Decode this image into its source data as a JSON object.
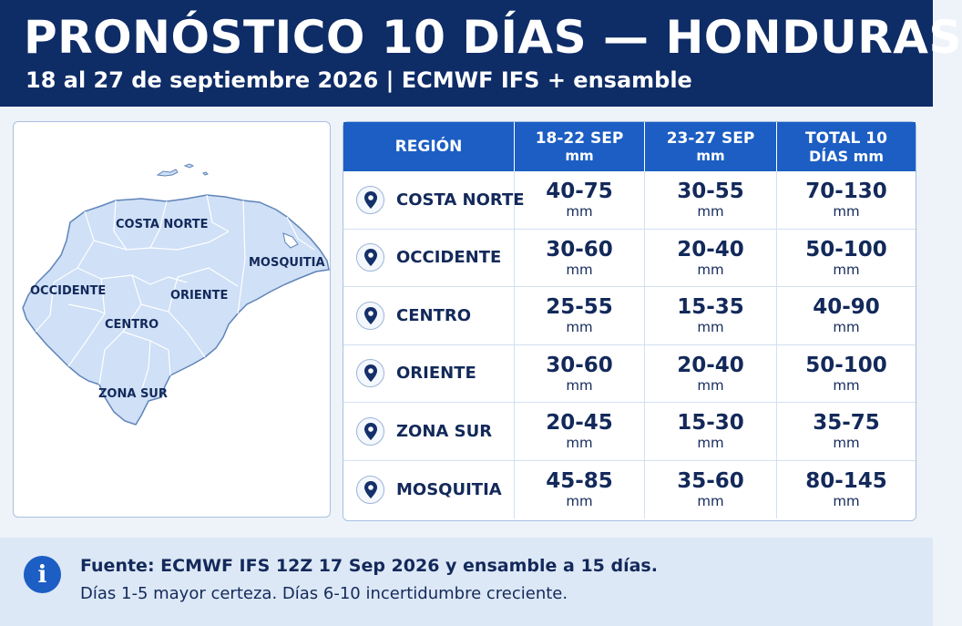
{
  "header": {
    "title": "PRONÓSTICO 10 DÍAS — HONDURAS",
    "subtitle": "18 al 27 de septiembre 2026 | ECMWF IFS + ensamble"
  },
  "map": {
    "labels": {
      "costa_norte": "COSTA NORTE",
      "mosquitia": "MOSQUITIA",
      "occidente": "OCCIDENTE",
      "oriente": "ORIENTE",
      "centro": "CENTRO",
      "zona_sur": "ZONA SUR"
    }
  },
  "table": {
    "headers": {
      "region": "REGIÓN",
      "p1": "18-22 SEP",
      "p1_unit": "mm",
      "p2": "23-27 SEP",
      "p2_unit": "mm",
      "total": "TOTAL 10",
      "total_unit": "DÍAS mm"
    },
    "unit": "mm",
    "rows": [
      {
        "region": "COSTA NORTE",
        "p1": "40-75",
        "p2": "30-55",
        "total": "70-130"
      },
      {
        "region": "OCCIDENTE",
        "p1": "30-60",
        "p2": "20-40",
        "total": "50-100"
      },
      {
        "region": "CENTRO",
        "p1": "25-55",
        "p2": "15-35",
        "total": "40-90"
      },
      {
        "region": "ORIENTE",
        "p1": "30-60",
        "p2": "20-40",
        "total": "50-100"
      },
      {
        "region": "ZONA SUR",
        "p1": "20-45",
        "p2": "15-30",
        "total": "35-75"
      },
      {
        "region": "MOSQUITIA",
        "p1": "45-85",
        "p2": "35-60",
        "total": "80-145"
      }
    ]
  },
  "footer": {
    "line1": "Fuente: ECMWF IFS 12Z 17 Sep 2026 y ensamble a 15 días.",
    "line2": "Días 1-5 mayor certeza. Días 6-10 incertidumbre creciente."
  },
  "icons": {
    "info": "info-icon",
    "pin": "map-pin-icon"
  },
  "colors": {
    "header_bg": "#0e2c66",
    "table_header_bg": "#1c5ec3",
    "map_fill": "#cfe0f7",
    "footer_bg": "#dde8f6"
  }
}
